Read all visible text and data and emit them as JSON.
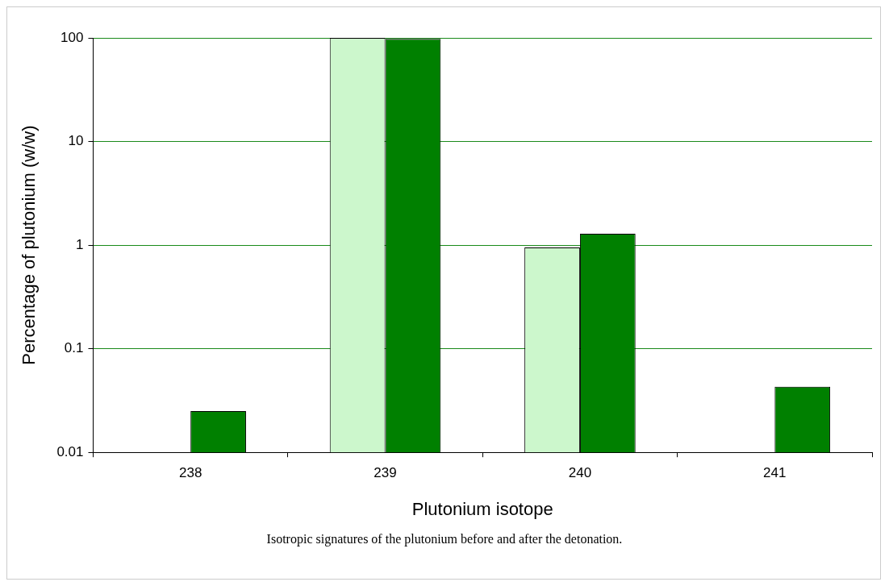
{
  "chart_data": {
    "type": "bar",
    "xlabel": "Plutonium isotope",
    "ylabel": "Percentage of plutonium (w/w)",
    "categories": [
      "238",
      "239",
      "240",
      "241"
    ],
    "series": [
      {
        "color": "#ccf7cc",
        "values": [
          null,
          100,
          0.95,
          null
        ]
      },
      {
        "color": "#008000",
        "values": [
          0.025,
          98,
          1.29,
          0.043
        ]
      }
    ],
    "log": true,
    "ylim": [
      0.01,
      100
    ],
    "yticks": [
      0.01,
      0.1,
      1,
      10,
      100
    ],
    "grid": "y",
    "legend": false,
    "annotations": [
      "Isotropic signatures of the plutonium before and after the detonation."
    ]
  }
}
